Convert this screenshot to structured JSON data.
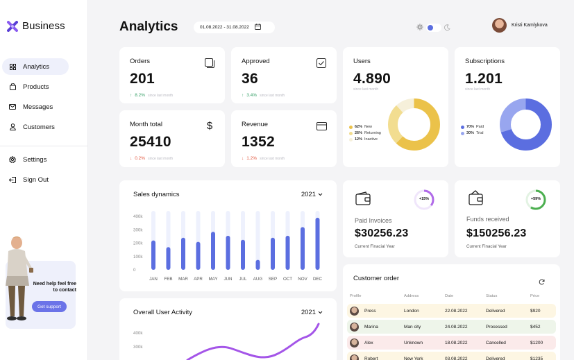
{
  "app": {
    "brand": "Business"
  },
  "sidebar": {
    "items": [
      {
        "label": "Analytics",
        "icon": "grid-icon",
        "active": true
      },
      {
        "label": "Products",
        "icon": "bag-icon"
      },
      {
        "label": "Messages",
        "icon": "mail-icon"
      },
      {
        "label": "Customers",
        "icon": "user-icon"
      }
    ],
    "secondary": [
      {
        "label": "Settings",
        "icon": "gear-icon"
      },
      {
        "label": "Sign Out",
        "icon": "sign-out-icon"
      }
    ],
    "help": {
      "text": "Need help feel free to contact",
      "button": "Get support"
    }
  },
  "header": {
    "title": "Analytics",
    "date_range": "01.08.2022 - 31.08.2022",
    "user_name": "Kristi Kamlykova"
  },
  "stats": {
    "orders": {
      "title": "Orders",
      "value": "201",
      "change": "8.2%",
      "direction": "up",
      "since": "since last month"
    },
    "approved": {
      "title": "Approved",
      "value": "36",
      "change": "3.4%",
      "direction": "up",
      "since": "since last month"
    },
    "month_total": {
      "title": "Month total",
      "value": "25410",
      "change": "0.2%",
      "direction": "down",
      "since": "since last month"
    },
    "revenue": {
      "title": "Revenue",
      "value": "1352",
      "change": "1.2%",
      "direction": "down",
      "since": "since last month"
    },
    "users": {
      "title": "Users",
      "value": "4.890",
      "since": "since last month",
      "legend": [
        {
          "pct": "62%",
          "label": "New",
          "value": 62,
          "color": "#ebc24a"
        },
        {
          "pct": "26%",
          "label": "Returning",
          "value": 26,
          "color": "#f2dd90"
        },
        {
          "pct": "12%",
          "label": "Inactive",
          "value": 12,
          "color": "#f6f0da"
        }
      ]
    },
    "subscriptions": {
      "title": "Subscriptions",
      "value": "1.201",
      "since": "since last month",
      "legend": [
        {
          "pct": "70%",
          "label": "Paid",
          "value": 70,
          "color": "#5b6ee0"
        },
        {
          "pct": "30%",
          "label": "Trial",
          "value": 30,
          "color": "#98a6ef"
        }
      ]
    }
  },
  "sales": {
    "title": "Sales dynamics",
    "year": "2021",
    "chart_data": {
      "type": "bar",
      "categories": [
        "JAN",
        "FEB",
        "MAR",
        "APR",
        "MAY",
        "JUN",
        "JUL",
        "AUG",
        "SEP",
        "OCT",
        "NOV",
        "DEC"
      ],
      "values": [
        220,
        170,
        240,
        210,
        285,
        255,
        225,
        75,
        240,
        255,
        320,
        390
      ],
      "ylim": [
        0,
        400
      ],
      "yticks": [
        "400k",
        "300k",
        "200k",
        "100k",
        "0"
      ]
    }
  },
  "activity": {
    "title": "Overall User Activity",
    "year": "2021",
    "yticks": [
      "400k",
      "300k"
    ]
  },
  "paid_invoices": {
    "badge": "+15%",
    "label": "Paid Invoices",
    "value": "$30256.23",
    "sub": "Current Finacial Year"
  },
  "funds_received": {
    "badge": "+59%",
    "label": "Funds received",
    "value": "$150256.23",
    "sub": "Current Finacial Year"
  },
  "customer_order": {
    "title": "Customer order",
    "columns": [
      "Profile",
      "Address",
      "Date",
      "Status",
      "Price"
    ],
    "rows": [
      {
        "name": "Press",
        "address": "London",
        "date": "22.08.2022",
        "status": "Delivered",
        "price": "$920",
        "tint": "#fdf6e3"
      },
      {
        "name": "Marina",
        "address": "Man city",
        "date": "24.08.2022",
        "status": "Processed",
        "price": "$452",
        "tint": "#eef5ea"
      },
      {
        "name": "Alex",
        "address": "Unknown",
        "date": "18.08.2022",
        "status": "Cancelled",
        "price": "$1200",
        "tint": "#fbeaea"
      },
      {
        "name": "Robert",
        "address": "New York",
        "date": "03.08.2022",
        "status": "Delivered",
        "price": "$1235",
        "tint": "#fdf6e3"
      }
    ]
  }
}
